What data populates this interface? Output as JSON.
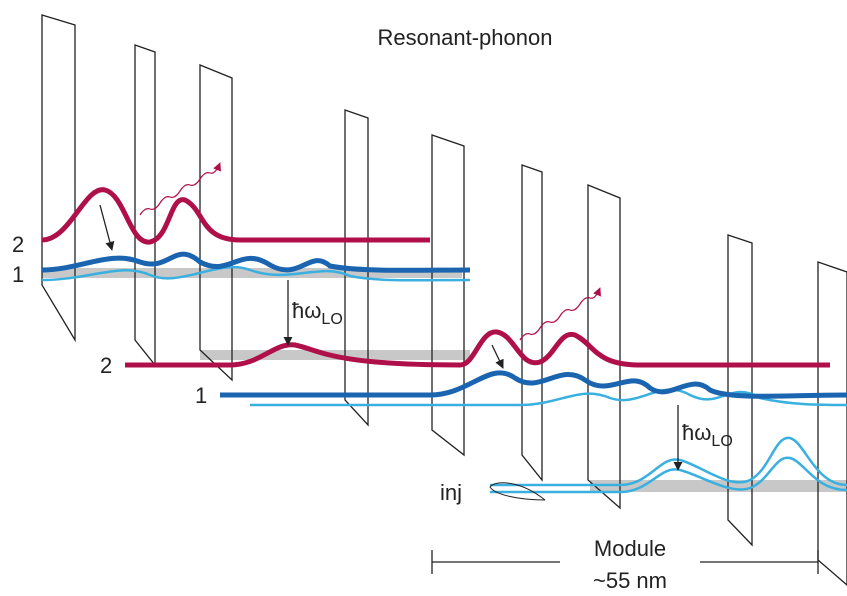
{
  "title": "Resonant-phonon",
  "module_a": {
    "level_upper": "2",
    "level_lower": "1",
    "phonon": {
      "symbol": "ħω",
      "subscript": "LO"
    }
  },
  "module_b": {
    "level_upper": "2",
    "level_lower": "1",
    "phonon": {
      "symbol": "ħω",
      "subscript": "LO"
    }
  },
  "injector": "inj",
  "scale": {
    "label": "Module",
    "length": "~55 nm"
  }
}
